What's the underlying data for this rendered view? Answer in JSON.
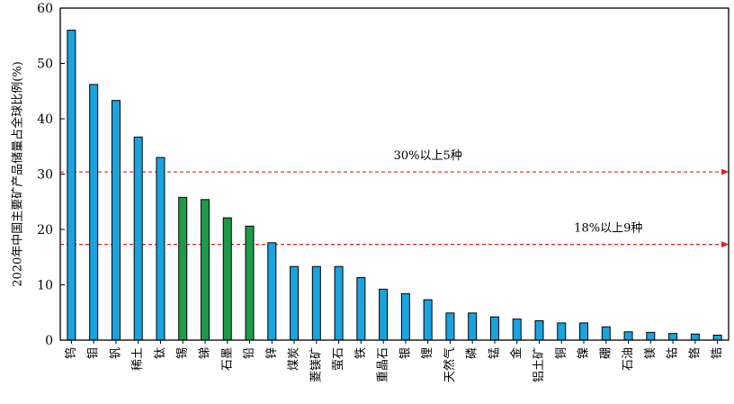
{
  "chart_data": {
    "type": "bar",
    "ylabel": "2020年中国主要矿产品储量占全球比例(%)",
    "ylim": [
      0,
      60
    ],
    "yticks": [
      "0",
      "10",
      "20",
      "30",
      "40",
      "50",
      "60"
    ],
    "grid": false,
    "categories": [
      "钨",
      "钼",
      "钒",
      "稀土",
      "钛",
      "锡",
      "锑",
      "石墨",
      "铅",
      "锌",
      "煤炭",
      "菱镁矿",
      "萤石",
      "铁",
      "重晶石",
      "银",
      "锂",
      "天然气",
      "磷",
      "锰",
      "金",
      "铝土矿",
      "铜",
      "镍",
      "硼",
      "石油",
      "镁",
      "钴",
      "铬",
      "锆"
    ],
    "values": [
      56,
      46.2,
      43.3,
      36.7,
      33,
      25.8,
      25.4,
      22.1,
      20.6,
      17.6,
      13.3,
      13.3,
      13.3,
      11.3,
      9.2,
      8.4,
      7.3,
      4.9,
      4.9,
      4.2,
      3.8,
      3.5,
      3.1,
      3.1,
      2.4,
      1.5,
      1.4,
      1.2,
      1.1,
      0.9
    ],
    "bar_colors": [
      "#1aa3de",
      "#1aa3de",
      "#1aa3de",
      "#1aa3de",
      "#1aa3de",
      "#1f9a48",
      "#1f9a48",
      "#1f9a48",
      "#1f9a48",
      "#1aa3de",
      "#1aa3de",
      "#1aa3de",
      "#1aa3de",
      "#1aa3de",
      "#1aa3de",
      "#1aa3de",
      "#1aa3de",
      "#1aa3de",
      "#1aa3de",
      "#1aa3de",
      "#1aa3de",
      "#1aa3de",
      "#1aa3de",
      "#1aa3de",
      "#1aa3de",
      "#1aa3de",
      "#1aa3de",
      "#1aa3de",
      "#1aa3de",
      "#1aa3de"
    ],
    "reference_lines": [
      {
        "value": 30.4,
        "label": "30%以上5种",
        "color": "#e0201c"
      },
      {
        "value": 17.3,
        "label": "18%以上9种",
        "color": "#e0201c"
      }
    ]
  }
}
